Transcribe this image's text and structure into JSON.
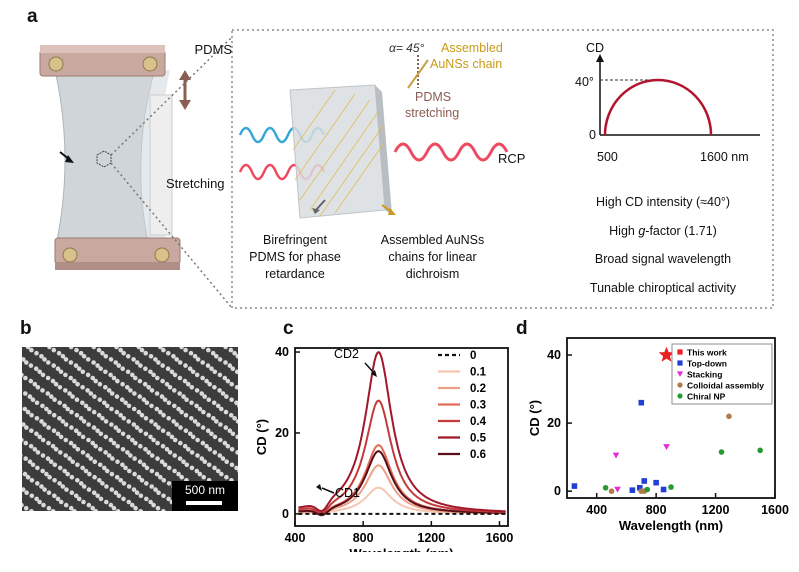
{
  "panel_a": {
    "letter": "a",
    "pdms_label": "PDMS",
    "stretching_label": "Stretching",
    "alpha_label": "α= 45°",
    "assembled_chain_label": [
      "Assembled",
      "AuNSs chain"
    ],
    "pdms_stretching_label": [
      "PDMS",
      "stretching"
    ],
    "rcp_label": "RCP",
    "birefringent_caption": [
      "Birefringent",
      "PDMS for phase",
      "retardance"
    ],
    "assembled_caption": [
      "Assembled AuNSs",
      "chains for linear",
      "dichroism"
    ],
    "cd_axis_label": "CD",
    "cd_tick_40": "40°",
    "cd_tick_0": "0",
    "x_tick_500": "500",
    "x_tick_1600": "1600 nm",
    "notes": [
      {
        "pre": "High CD intensity (≈40°)",
        "ital": "",
        "post": ""
      },
      {
        "pre": "High ",
        "ital": "g",
        "post": "-factor (1.71)"
      },
      {
        "pre": "Broad signal wavelength",
        "ital": "",
        "post": ""
      },
      {
        "pre": "Tunable chiroptical activity",
        "ital": "",
        "post": ""
      }
    ]
  },
  "panel_b": {
    "letter": "b",
    "scale_bar": "500 nm"
  },
  "panel_c": {
    "letter": "c",
    "annotations": {
      "cd2": "CD2",
      "cd1": "CD1"
    }
  },
  "panel_d": {
    "letter": "d"
  },
  "colors": {
    "dot_border": "#8c8c8c",
    "c_series": [
      "#111111",
      "#f6c7b0",
      "#eea087",
      "#e06b57",
      "#c33a3a",
      "#a0182a",
      "#5a0e1a"
    ],
    "d_this": "#e82020",
    "d_top": "#1f3fd6",
    "d_stack": "#e62ad8",
    "d_coll": "#b07a4a",
    "d_chiral": "#249a2f"
  },
  "chart_data": [
    {
      "type": "line",
      "panel": "c",
      "xlabel": "Wavelength (nm)",
      "ylabel": "CD (°)",
      "xlim": [
        400,
        1650
      ],
      "ylim": [
        -3,
        41
      ],
      "xticks": [
        400,
        800,
        1200,
        1600
      ],
      "yticks": [
        0,
        20,
        40
      ],
      "legend": "right",
      "series": [
        {
          "name": "0",
          "dashed": true,
          "peak": 0,
          "dip": 0
        },
        {
          "name": "0.1",
          "peak": 6.5,
          "dip": -0.5
        },
        {
          "name": "0.2",
          "peak": 12,
          "dip": -0.9
        },
        {
          "name": "0.3",
          "peak": 17,
          "dip": -1.3
        },
        {
          "name": "0.4",
          "peak": 28,
          "dip": -1.9
        },
        {
          "name": "0.5",
          "peak": 40,
          "dip": -2.3
        },
        {
          "name": "0.6",
          "peak": 15.5,
          "dip": -1.5
        }
      ],
      "peak_wavelength": 890,
      "dip_wavelength": 560
    },
    {
      "type": "scatter",
      "panel": "d",
      "xlabel": "Wavelength (nm)",
      "ylabel": "CD (°)",
      "xlim": [
        200,
        1600
      ],
      "ylim": [
        -2,
        45
      ],
      "xticks": [
        400,
        800,
        1200,
        1600
      ],
      "yticks": [
        0,
        20,
        40
      ],
      "legend": "top-right",
      "series": [
        {
          "name": "This work",
          "marker": "star",
          "points": [
            [
              870,
              40
            ]
          ]
        },
        {
          "name": "Top-down",
          "marker": "square",
          "points": [
            [
              250,
              1.5
            ],
            [
              700,
              26
            ],
            [
              720,
              3
            ],
            [
              800,
              2.5
            ],
            [
              850,
              0.5
            ],
            [
              640,
              0.3
            ],
            [
              690,
              1
            ]
          ]
        },
        {
          "name": "Stacking",
          "marker": "triangle",
          "points": [
            [
              530,
              10.5
            ],
            [
              870,
              13
            ],
            [
              540,
              0.5
            ]
          ]
        },
        {
          "name": "Colloidal assembly",
          "marker": "circle",
          "points": [
            [
              1290,
              22
            ],
            [
              700,
              0
            ],
            [
              720,
              0
            ],
            [
              500,
              0
            ]
          ]
        },
        {
          "name": "Chiral NP",
          "marker": "circle",
          "points": [
            [
              1500,
              12
            ],
            [
              1240,
              11.5
            ],
            [
              460,
              1
            ],
            [
              740,
              0.5
            ],
            [
              900,
              1.2
            ]
          ]
        }
      ]
    },
    {
      "type": "line",
      "panel": "a-inset",
      "ylabel": "CD",
      "x": [
        500,
        1600
      ],
      "peak": 40
    }
  ]
}
